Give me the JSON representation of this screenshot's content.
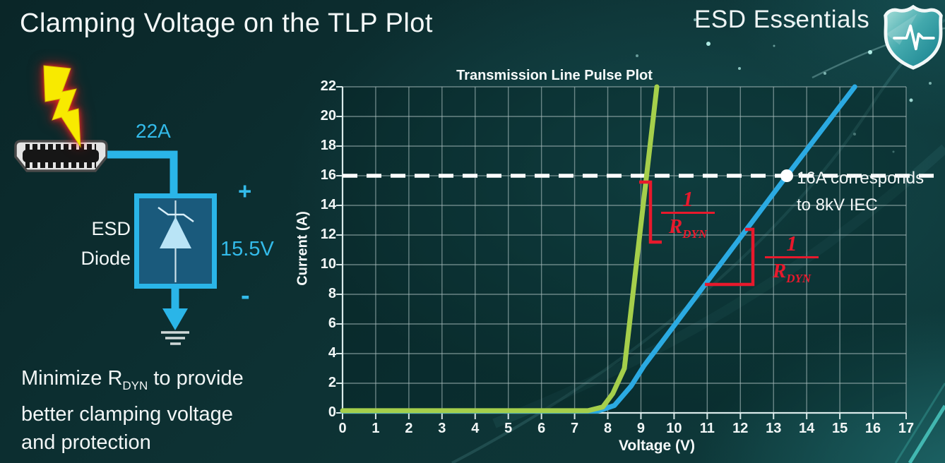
{
  "slide": {
    "title": "Clamping Voltage on the TLP Plot",
    "brand": "ESD Essentials"
  },
  "diagram": {
    "surge_label": "22A",
    "device_line1": "ESD",
    "device_line2": "Diode",
    "clamp_voltage": "15.5V",
    "plus": "+",
    "minus": "-",
    "colors": {
      "wire": "#2ab5e8",
      "bolt": "#f8ea00",
      "bolt_glow": "#e8192c"
    }
  },
  "note": {
    "line1_pre": "Minimize R",
    "line1_sub": "DYN",
    "line1_post": " to provide",
    "line2": "better clamping voltage",
    "line3": "and protection"
  },
  "chart_data": {
    "type": "line",
    "title": "Transmission Line Pulse Plot",
    "xlabel": "Voltage (V)",
    "ylabel": "Current (A)",
    "xlim": [
      0,
      17
    ],
    "ylim": [
      0,
      22
    ],
    "x_ticks": [
      0,
      1,
      2,
      3,
      4,
      5,
      6,
      7,
      8,
      9,
      10,
      11,
      12,
      13,
      14,
      15,
      16,
      17
    ],
    "y_ticks": [
      0,
      2,
      4,
      6,
      8,
      10,
      12,
      14,
      16,
      18,
      20,
      22
    ],
    "grid": {
      "x_step": 1,
      "y_step": 2,
      "on": true
    },
    "series": [
      {
        "name": "blue-curve",
        "color": "#2baae2",
        "points": [
          [
            0,
            0.12
          ],
          [
            7.7,
            0.12
          ],
          [
            8.2,
            0.5
          ],
          [
            8.7,
            1.8
          ],
          [
            9.1,
            3.2
          ],
          [
            13.4,
            16
          ],
          [
            15.45,
            22
          ]
        ]
      },
      {
        "name": "green-curve",
        "color": "#a5cf4b",
        "points": [
          [
            0,
            0.15
          ],
          [
            7.4,
            0.15
          ],
          [
            7.85,
            0.4
          ],
          [
            8.15,
            1.3
          ],
          [
            8.5,
            3
          ],
          [
            9.17,
            16
          ],
          [
            9.48,
            22
          ]
        ]
      }
    ],
    "reference_line": {
      "y": 16,
      "style": "dashed",
      "color": "#ffffff"
    },
    "marker": {
      "x": 13.4,
      "y": 16,
      "label_line1": "16A corresponds",
      "label_line2": "to 8kV IEC"
    },
    "slope_labels": [
      {
        "num": "1",
        "den_main": "R",
        "den_sub": "DYN"
      },
      {
        "num": "1",
        "den_main": "R",
        "den_sub": "DYN"
      }
    ],
    "accent_color": "#e8192c"
  }
}
